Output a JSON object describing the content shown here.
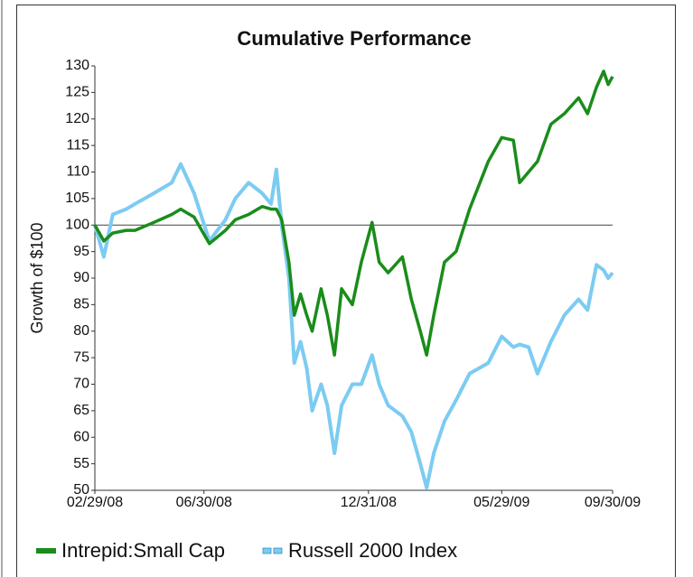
{
  "chart_data": {
    "type": "line",
    "title": "Cumulative Performance",
    "y_label": "Growth of $100",
    "x": [
      "2008-02-29",
      "2008-03-10",
      "2008-03-20",
      "2008-04-04",
      "2008-04-14",
      "2008-05-05",
      "2008-05-25",
      "2008-06-04",
      "2008-06-19",
      "2008-07-06",
      "2008-07-24",
      "2008-08-04",
      "2008-08-19",
      "2008-09-03",
      "2008-09-13",
      "2008-09-19",
      "2008-09-25",
      "2008-10-03",
      "2008-10-09",
      "2008-10-16",
      "2008-10-23",
      "2008-10-29",
      "2008-11-08",
      "2008-11-15",
      "2008-11-23",
      "2008-12-01",
      "2008-12-13",
      "2008-12-23",
      "2009-01-04",
      "2009-01-12",
      "2009-01-22",
      "2009-02-07",
      "2009-02-17",
      "2009-02-27",
      "2009-03-06",
      "2009-03-14",
      "2009-03-26",
      "2009-04-08",
      "2009-04-23",
      "2009-05-14",
      "2009-05-29",
      "2009-06-11",
      "2009-06-18",
      "2009-06-28",
      "2009-07-08",
      "2009-07-23",
      "2009-08-07",
      "2009-08-23",
      "2009-09-02",
      "2009-09-12",
      "2009-09-20",
      "2009-09-25",
      "2009-09-30"
    ],
    "series": [
      {
        "name": "Intrepid:Small Cap",
        "color": "#1a8c1a",
        "values": [
          100,
          97,
          98.5,
          99,
          99,
          100.5,
          102,
          103,
          101.5,
          96.5,
          99,
          101,
          102,
          103.5,
          103,
          103,
          101,
          93,
          83,
          87,
          83,
          80,
          88,
          83,
          75.5,
          88,
          85,
          93,
          100.5,
          93,
          91,
          94,
          86,
          80,
          75.5,
          83,
          93,
          95,
          103,
          112,
          116.5,
          116,
          108,
          110,
          112,
          119,
          121,
          124,
          121,
          126,
          129,
          126.5,
          128
        ]
      },
      {
        "name": "Russell 2000 Index",
        "color": "#7ccbf2",
        "values": [
          100,
          94,
          102,
          103,
          104,
          106,
          108,
          111.5,
          106,
          97,
          101,
          105,
          108,
          106,
          104,
          110.5,
          100,
          90,
          74,
          78,
          73,
          65,
          70,
          66,
          57,
          66,
          70,
          70,
          75.5,
          70,
          66,
          64,
          61,
          55,
          50.5,
          57,
          63,
          67,
          72,
          74,
          79,
          77,
          77.5,
          77,
          72,
          78,
          83,
          86,
          84,
          92.5,
          91.5,
          90,
          91
        ]
      }
    ],
    "xlim": [
      "2008-02-29",
      "2009-09-30"
    ],
    "xticks": [
      {
        "value": "2008-02-29",
        "label": "02/29/08"
      },
      {
        "value": "2008-06-30",
        "label": "06/30/08"
      },
      {
        "value": "2008-12-31",
        "label": "12/31/08"
      },
      {
        "value": "2009-05-29",
        "label": "05/29/09"
      },
      {
        "value": "2009-09-30",
        "label": "09/30/09"
      }
    ],
    "ylim": [
      50,
      130
    ],
    "yticks": [
      50,
      55,
      60,
      65,
      70,
      75,
      80,
      85,
      90,
      95,
      100,
      105,
      110,
      115,
      120,
      125,
      130
    ],
    "reference_line": 100,
    "legend": "bottom"
  }
}
